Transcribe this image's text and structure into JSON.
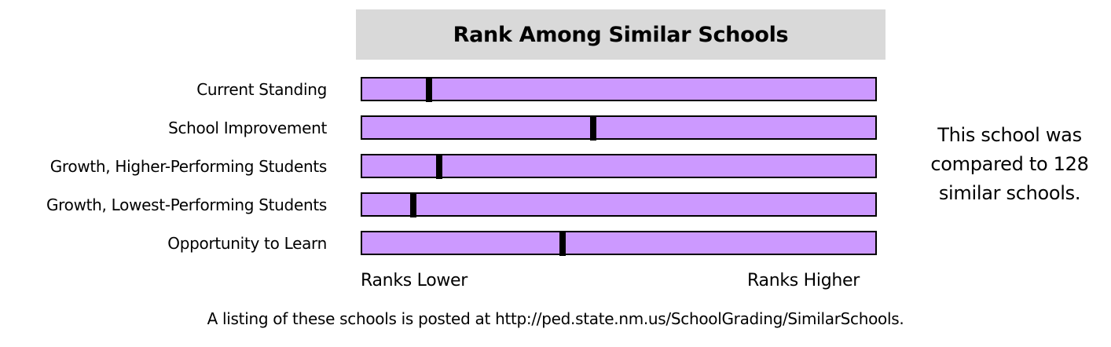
{
  "chart_data": {
    "type": "bar",
    "title": "Rank Among Similar Schools",
    "categories": [
      "Current Standing",
      "School Improvement",
      "Growth, Higher-Performing Students",
      "Growth, Lowest-Performing Students",
      "Opportunity to Learn"
    ],
    "values": [
      0.13,
      0.45,
      0.15,
      0.1,
      0.39
    ],
    "xlim": [
      0,
      1
    ],
    "axis_min_label": "Ranks Lower",
    "axis_max_label": "Ranks Higher",
    "grid": false
  },
  "note": {
    "lines": [
      "This school was",
      "compared to 128",
      "similar schools."
    ]
  },
  "footer": {
    "text": "A listing of these schools is posted at http://ped.state.nm.us/SchoolGrading/SimilarSchools."
  },
  "colors": {
    "track": "#cc99ff",
    "marker": "#000000",
    "title_background": "#d9d9d9"
  }
}
